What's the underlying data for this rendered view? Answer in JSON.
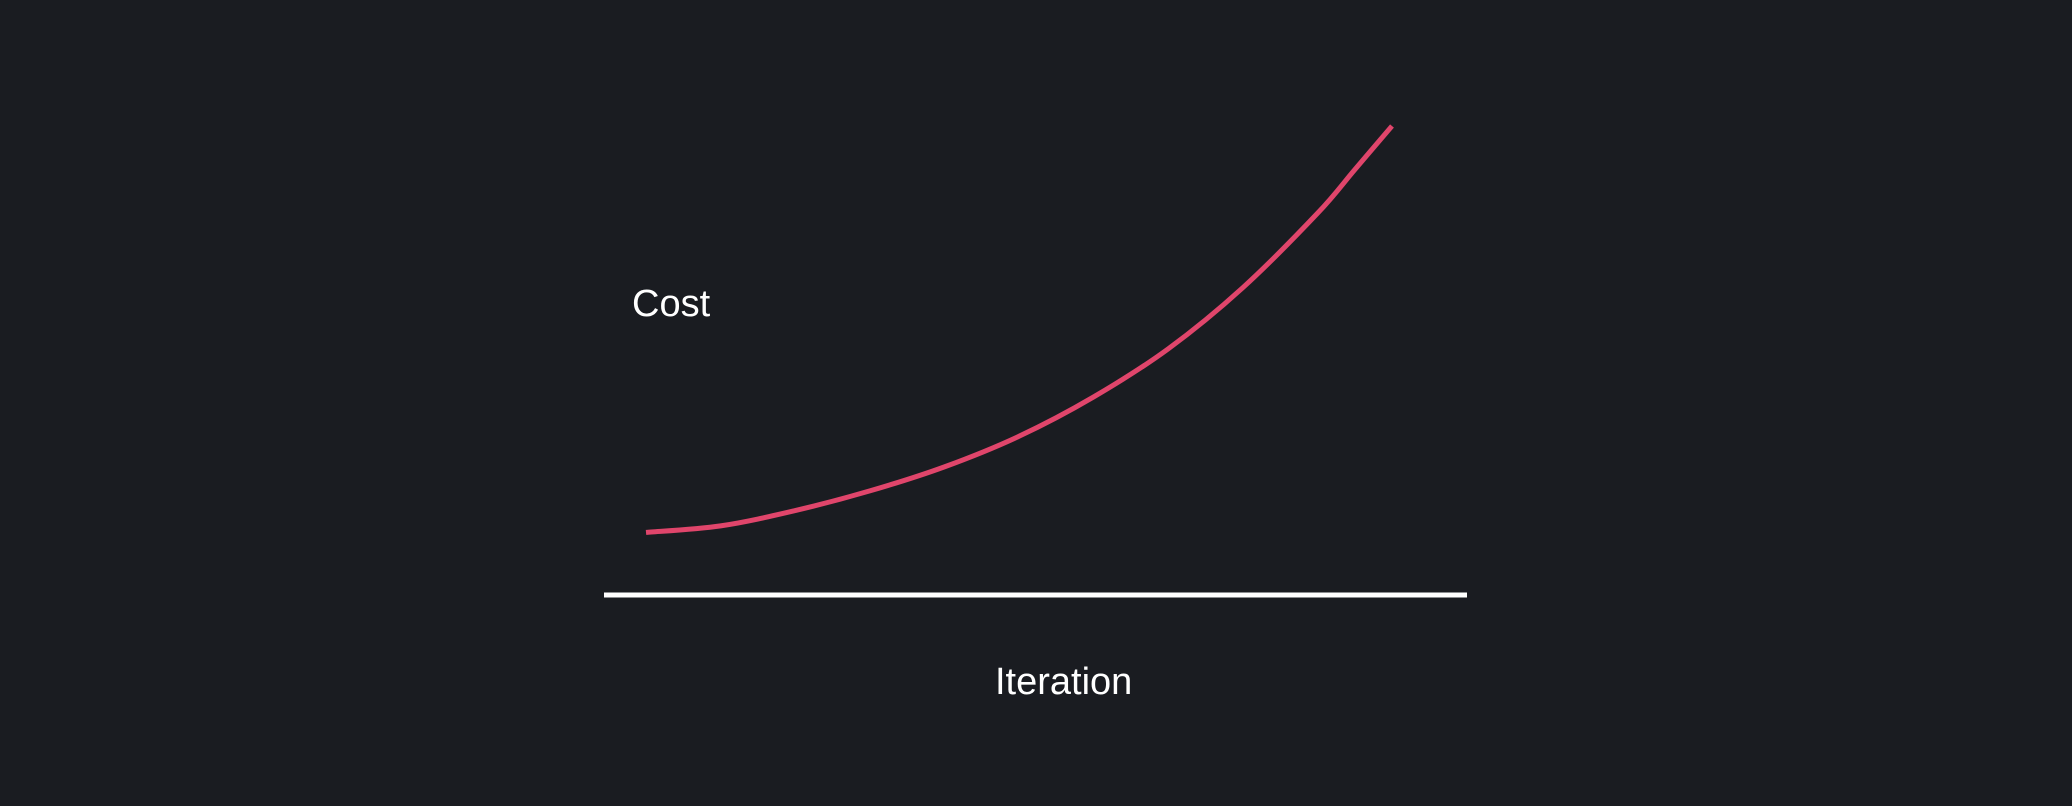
{
  "colors": {
    "background": "#1a1c21",
    "curve": "#e0456b",
    "axis": "#ffffff",
    "text": "#ffffff"
  },
  "chart_data": {
    "type": "line",
    "xlabel": "Iteration",
    "ylabel": "Cost",
    "title": "",
    "grid": false,
    "series": [
      {
        "x": [
          0.0,
          0.1,
          0.2,
          0.3,
          0.4,
          0.5,
          0.6,
          0.7,
          0.8,
          0.9,
          0.95,
          1.0
        ],
        "values": [
          0.07,
          0.085,
          0.12,
          0.165,
          0.22,
          0.29,
          0.38,
          0.49,
          0.63,
          0.8,
          0.9,
          1.0
        ]
      }
    ],
    "xlim": [
      0,
      1
    ],
    "ylim": [
      0,
      1
    ]
  }
}
